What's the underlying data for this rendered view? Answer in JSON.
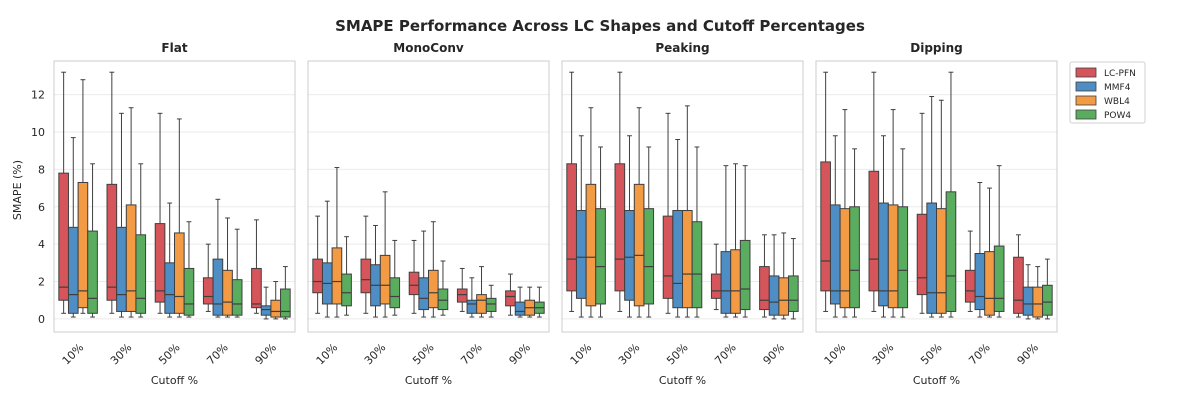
{
  "chart_data": {
    "type": "box",
    "title": "SMAPE Performance Across LC Shapes and Cutoff Percentages",
    "ylabel": "SMAPE (%)",
    "xlabel": "Cutoff %",
    "ylim": [
      -0.7,
      13.8
    ],
    "yticks": [
      0,
      2,
      4,
      6,
      8,
      10,
      12
    ],
    "categories": [
      "10%",
      "30%",
      "50%",
      "70%",
      "90%"
    ],
    "grid": true,
    "legend_position": "right",
    "colors": {
      "LC-PFN": "#d6555a",
      "MMF4": "#4f8ec4",
      "WBL4": "#f39a44",
      "POW4": "#5aad5e"
    },
    "series_names": [
      "LC-PFN",
      "MMF4",
      "WBL4",
      "POW4"
    ],
    "panels": [
      {
        "title": "Flat",
        "boxes": {
          "LC-PFN": [
            [
              0.3,
              1.0,
              1.7,
              7.8,
              13.2
            ],
            [
              0.3,
              1.0,
              1.7,
              7.2,
              13.2
            ],
            [
              0.3,
              0.9,
              1.5,
              5.1,
              11.0
            ],
            [
              0.4,
              0.8,
              1.2,
              2.2,
              4.0
            ],
            [
              0.3,
              0.6,
              0.8,
              2.7,
              5.3
            ]
          ],
          "MMF4": [
            [
              0.1,
              0.3,
              1.3,
              4.9,
              9.7
            ],
            [
              0.1,
              0.4,
              1.3,
              4.9,
              11.0
            ],
            [
              0.1,
              0.3,
              1.3,
              3.0,
              6.2
            ],
            [
              0.1,
              0.2,
              0.8,
              3.2,
              6.4
            ],
            [
              0.0,
              0.2,
              0.5,
              0.7,
              1.7
            ]
          ],
          "WBL4": [
            [
              0.3,
              0.6,
              1.5,
              7.3,
              12.8
            ],
            [
              0.1,
              0.4,
              1.5,
              6.1,
              11.3
            ],
            [
              0.1,
              0.3,
              1.2,
              4.6,
              10.7
            ],
            [
              0.1,
              0.2,
              0.9,
              2.6,
              5.4
            ],
            [
              0.0,
              0.1,
              0.4,
              1.0,
              2.0
            ]
          ],
          "POW4": [
            [
              0.1,
              0.3,
              1.1,
              4.7,
              8.3
            ],
            [
              0.1,
              0.3,
              1.1,
              4.5,
              8.3
            ],
            [
              0.1,
              0.2,
              0.8,
              2.7,
              5.2
            ],
            [
              0.1,
              0.2,
              0.8,
              2.1,
              4.8
            ],
            [
              0.0,
              0.1,
              0.4,
              1.6,
              2.8
            ]
          ]
        }
      },
      {
        "title": "MonoConv",
        "boxes": {
          "LC-PFN": [
            [
              0.3,
              1.4,
              2.0,
              3.2,
              5.5
            ],
            [
              0.3,
              1.4,
              2.1,
              3.2,
              5.5
            ],
            [
              0.3,
              1.3,
              1.8,
              2.5,
              4.2
            ],
            [
              0.4,
              0.9,
              1.3,
              1.6,
              2.7
            ],
            [
              0.2,
              0.7,
              1.2,
              1.5,
              2.4
            ]
          ],
          "MMF4": [
            [
              0.1,
              0.8,
              1.9,
              3.0,
              6.3
            ],
            [
              0.1,
              0.7,
              1.8,
              2.9,
              5.0
            ],
            [
              0.1,
              0.5,
              1.1,
              2.2,
              4.7
            ],
            [
              0.1,
              0.3,
              0.8,
              1.0,
              2.2
            ],
            [
              0.1,
              0.2,
              0.4,
              0.9,
              1.7
            ]
          ],
          "WBL4": [
            [
              0.1,
              0.8,
              2.0,
              3.8,
              8.1
            ],
            [
              0.1,
              0.8,
              1.8,
              3.4,
              6.8
            ],
            [
              0.1,
              0.6,
              1.4,
              2.6,
              5.2
            ],
            [
              0.1,
              0.3,
              1.0,
              1.3,
              2.8
            ],
            [
              0.1,
              0.2,
              0.6,
              1.0,
              1.7
            ]
          ],
          "POW4": [
            [
              0.2,
              0.7,
              1.4,
              2.4,
              4.4
            ],
            [
              0.2,
              0.6,
              1.2,
              2.2,
              4.2
            ],
            [
              0.2,
              0.5,
              1.0,
              1.6,
              3.1
            ],
            [
              0.1,
              0.4,
              0.8,
              1.1,
              1.8
            ],
            [
              0.1,
              0.3,
              0.6,
              0.9,
              1.7
            ]
          ]
        }
      },
      {
        "title": "Peaking",
        "boxes": {
          "LC-PFN": [
            [
              0.4,
              1.5,
              3.2,
              8.3,
              13.2
            ],
            [
              0.4,
              1.5,
              3.2,
              8.3,
              13.2
            ],
            [
              0.3,
              1.1,
              2.3,
              5.5,
              11.0
            ],
            [
              0.5,
              1.1,
              1.5,
              2.4,
              4.0
            ],
            [
              0.1,
              0.5,
              1.0,
              2.8,
              4.5
            ]
          ],
          "MMF4": [
            [
              0.1,
              1.1,
              3.3,
              5.8,
              9.8
            ],
            [
              0.1,
              1.0,
              3.3,
              5.8,
              9.8
            ],
            [
              0.1,
              0.6,
              1.9,
              5.8,
              9.6
            ],
            [
              0.1,
              0.3,
              1.5,
              3.6,
              8.2
            ],
            [
              0.0,
              0.2,
              0.9,
              2.3,
              4.5
            ]
          ],
          "WBL4": [
            [
              0.1,
              0.7,
              3.3,
              7.2,
              11.3
            ],
            [
              0.1,
              0.7,
              3.4,
              7.2,
              11.3
            ],
            [
              0.1,
              0.6,
              2.4,
              5.8,
              11.4
            ],
            [
              0.1,
              0.3,
              1.5,
              3.7,
              8.3
            ],
            [
              0.0,
              0.2,
              1.0,
              2.2,
              4.6
            ]
          ],
          "POW4": [
            [
              0.1,
              0.8,
              2.8,
              5.9,
              9.2
            ],
            [
              0.1,
              0.8,
              2.8,
              5.9,
              9.2
            ],
            [
              0.1,
              0.6,
              2.4,
              5.2,
              9.2
            ],
            [
              0.1,
              0.5,
              1.6,
              4.2,
              8.2
            ],
            [
              0.0,
              0.4,
              1.0,
              2.3,
              4.3
            ]
          ]
        }
      },
      {
        "title": "Dipping",
        "boxes": {
          "LC-PFN": [
            [
              0.4,
              1.5,
              3.1,
              8.4,
              13.2
            ],
            [
              0.4,
              1.5,
              3.2,
              7.9,
              13.2
            ],
            [
              0.3,
              1.3,
              2.2,
              5.6,
              11.0
            ],
            [
              0.4,
              0.9,
              1.5,
              2.6,
              4.7
            ],
            [
              0.1,
              0.3,
              1.0,
              3.3,
              4.5
            ]
          ],
          "MMF4": [
            [
              0.1,
              0.8,
              1.5,
              6.1,
              9.8
            ],
            [
              0.1,
              0.7,
              1.5,
              6.2,
              9.8
            ],
            [
              0.1,
              0.3,
              1.4,
              6.2,
              11.9
            ],
            [
              0.1,
              0.5,
              1.2,
              3.5,
              7.3
            ],
            [
              0.0,
              0.2,
              0.8,
              1.7,
              2.9
            ]
          ],
          "WBL4": [
            [
              0.1,
              0.6,
              1.5,
              5.9,
              11.2
            ],
            [
              0.1,
              0.6,
              1.5,
              6.1,
              11.2
            ],
            [
              0.1,
              0.3,
              1.4,
              5.9,
              11.7
            ],
            [
              0.1,
              0.2,
              1.1,
              3.6,
              7.0
            ],
            [
              0.0,
              0.1,
              0.8,
              1.7,
              2.8
            ]
          ],
          "POW4": [
            [
              0.1,
              0.6,
              2.6,
              6.0,
              9.1
            ],
            [
              0.1,
              0.6,
              2.6,
              6.0,
              9.1
            ],
            [
              0.1,
              0.4,
              2.3,
              6.8,
              13.2
            ],
            [
              0.1,
              0.4,
              1.1,
              3.9,
              8.2
            ],
            [
              0.0,
              0.2,
              0.9,
              1.8,
              3.2
            ]
          ]
        }
      }
    ]
  }
}
